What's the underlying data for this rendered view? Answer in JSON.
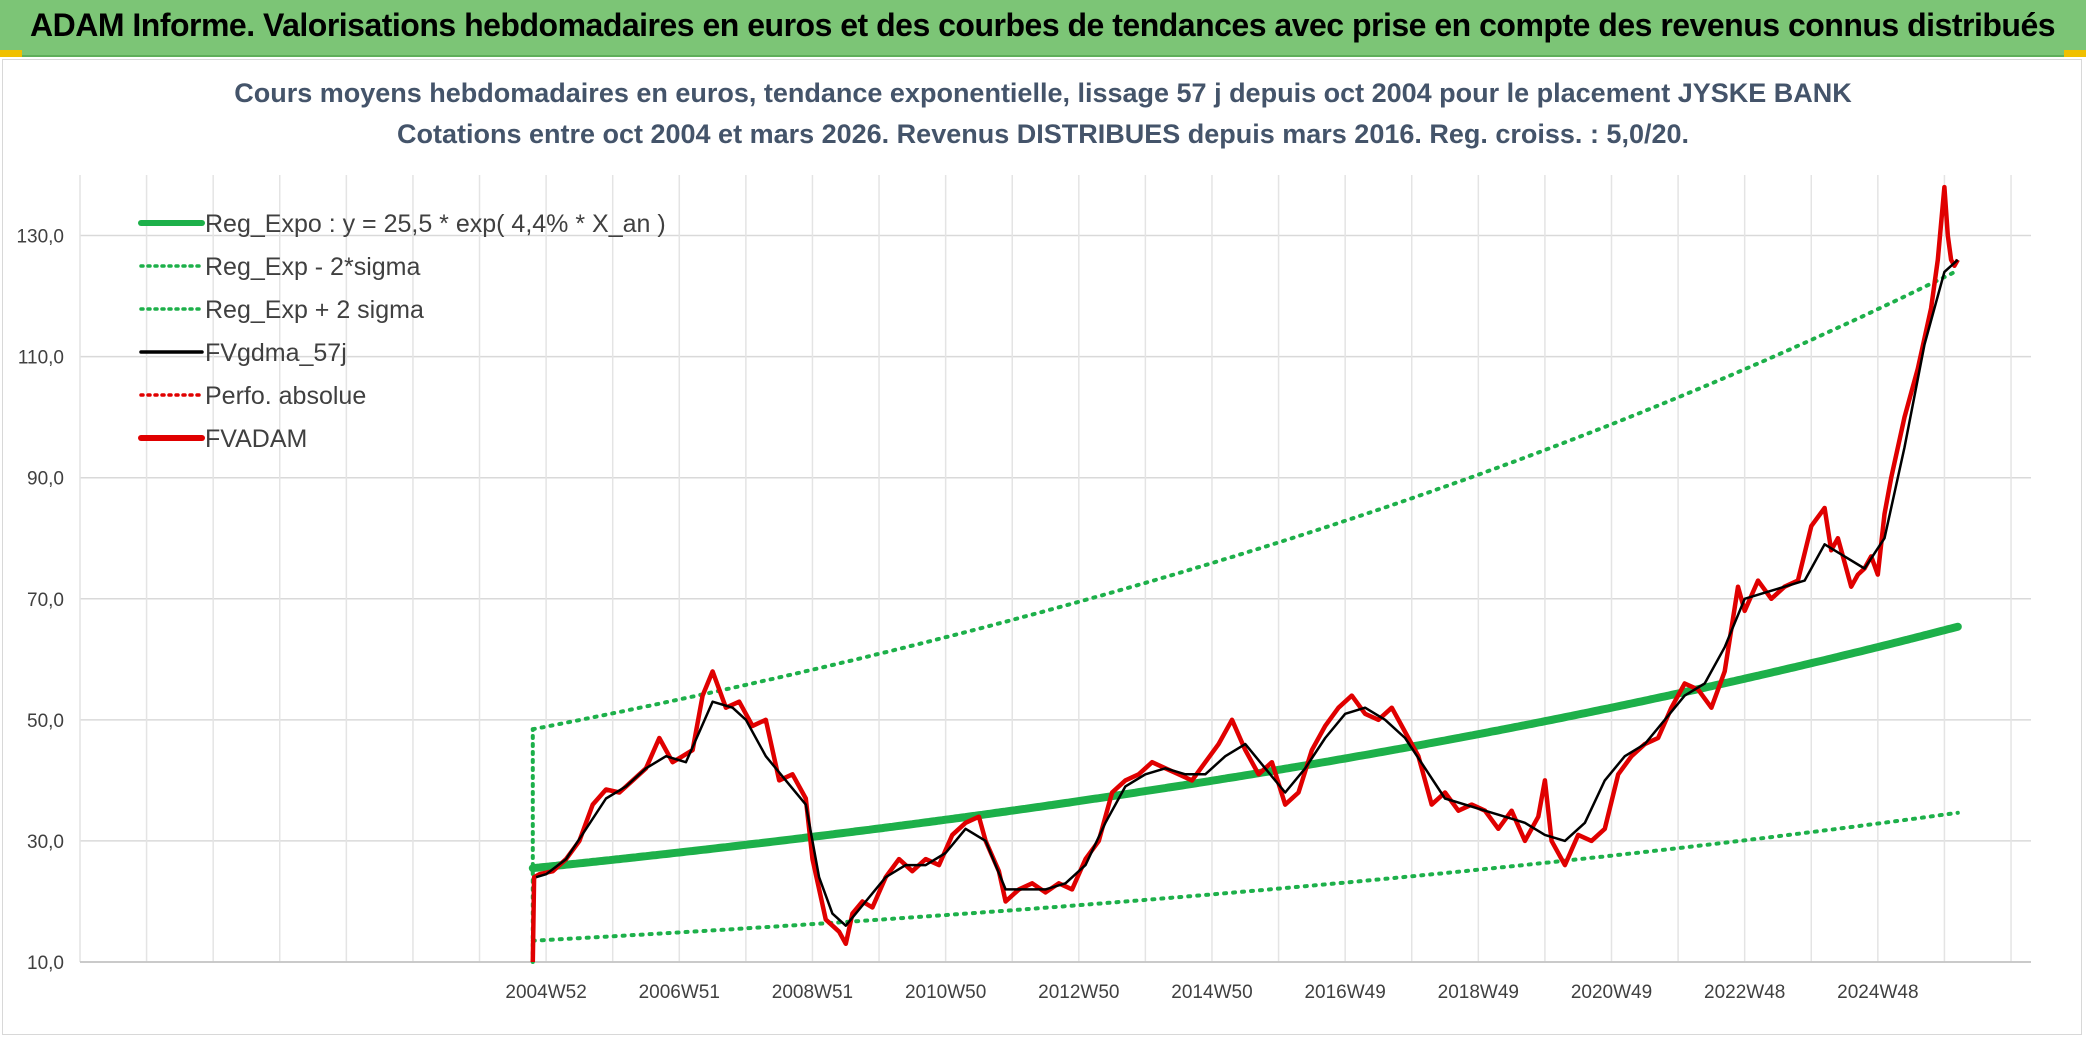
{
  "header": {
    "title": "ADAM Informe. Valorisations hebdomadaires en euros et des courbes de tendances avec prise en compte des revenus connus distribués"
  },
  "colors": {
    "banner": "#7cc576",
    "trend": "#1db04a",
    "band": "#1db04a",
    "smooth": "#000000",
    "perf": "#e00000",
    "price": "#e00000",
    "title": "#44546a"
  },
  "chart_data": {
    "type": "line",
    "title_line1": "Cours moyens hebdomadaires en euros, tendance exponentielle, lissage 57 j depuis oct 2004 pour le placement JYSKE BANK",
    "title_line2": "Cotations entre oct 2004 et mars 2026. Revenus DISTRIBUES depuis mars 2016. Reg. croiss. : 5,0/20.",
    "ylim": [
      10,
      130
    ],
    "ymax_plot": 140,
    "yticks": [
      "10,0",
      "30,0",
      "50,0",
      "70,0",
      "90,0",
      "110,0",
      "130,0"
    ],
    "ytick_values": [
      10,
      30,
      50,
      70,
      90,
      110,
      130
    ],
    "xlim": [
      1998.0,
      2027.3
    ],
    "xticks": [
      "2004W52",
      "2006W51",
      "2008W51",
      "2010W50",
      "2012W50",
      "2014W50",
      "2016W49",
      "2018W49",
      "2020W49",
      "2022W48",
      "2024W48"
    ],
    "xtick_values": [
      2005.0,
      2007.0,
      2009.0,
      2011.0,
      2013.0,
      2015.0,
      2017.0,
      2019.0,
      2021.0,
      2023.0,
      2025.0
    ],
    "grid": true,
    "legend_position": "top-left",
    "legend": [
      {
        "label": "Reg_Expo : y = 25,5 * exp( 4,4% *  X_an )",
        "style": "solid-thick",
        "color": "#1db04a"
      },
      {
        "label": "Reg_Exp - 2*sigma",
        "style": "dotted",
        "color": "#1db04a"
      },
      {
        "label": "Reg_Exp + 2 sigma",
        "style": "dotted",
        "color": "#1db04a"
      },
      {
        "label": "FVgdma_57j",
        "style": "solid",
        "color": "#000000"
      },
      {
        "label": "Perfo. absolue",
        "style": "dotted",
        "color": "#e00000"
      },
      {
        "label": "FVADAM",
        "style": "solid-thick",
        "color": "#e00000"
      }
    ],
    "trend": {
      "a": 25.5,
      "rate": 0.044,
      "start": 2004.8,
      "end": 2026.2
    },
    "band_lower_factor": 0.53,
    "band_upper_factor": 1.9,
    "series": [
      {
        "name": "FVADAM",
        "x": [
          2004.8,
          2004.82,
          2004.9,
          2005.1,
          2005.3,
          2005.5,
          2005.7,
          2005.9,
          2006.1,
          2006.3,
          2006.5,
          2006.7,
          2006.9,
          2007.05,
          2007.2,
          2007.35,
          2007.5,
          2007.7,
          2007.9,
          2008.1,
          2008.3,
          2008.5,
          2008.7,
          2008.9,
          2009.0,
          2009.2,
          2009.4,
          2009.5,
          2009.6,
          2009.75,
          2009.9,
          2010.1,
          2010.3,
          2010.5,
          2010.7,
          2010.9,
          2011.1,
          2011.3,
          2011.5,
          2011.6,
          2011.8,
          2011.9,
          2012.1,
          2012.3,
          2012.5,
          2012.7,
          2012.9,
          2013.1,
          2013.3,
          2013.5,
          2013.7,
          2013.9,
          2014.1,
          2014.3,
          2014.5,
          2014.7,
          2014.9,
          2015.1,
          2015.3,
          2015.5,
          2015.7,
          2015.9,
          2016.1,
          2016.3,
          2016.5,
          2016.7,
          2016.9,
          2017.1,
          2017.3,
          2017.5,
          2017.7,
          2017.9,
          2018.1,
          2018.3,
          2018.5,
          2018.7,
          2018.9,
          2019.1,
          2019.3,
          2019.5,
          2019.7,
          2019.9,
          2020.0,
          2020.1,
          2020.3,
          2020.5,
          2020.7,
          2020.9,
          2021.1,
          2021.3,
          2021.5,
          2021.7,
          2021.9,
          2022.1,
          2022.3,
          2022.5,
          2022.7,
          2022.9,
          2023.0,
          2023.2,
          2023.4,
          2023.6,
          2023.8,
          2024.0,
          2024.2,
          2024.3,
          2024.4,
          2024.5,
          2024.6,
          2024.7,
          2024.8,
          2024.9,
          2025.0,
          2025.1,
          2025.2,
          2025.4,
          2025.6,
          2025.8,
          2025.9,
          2026.0,
          2026.05,
          2026.1,
          2026.15,
          2026.2
        ],
        "values": [
          10,
          24,
          24.5,
          25,
          27,
          30,
          36,
          38.5,
          38,
          40,
          42,
          47,
          43,
          44,
          45,
          54,
          58,
          52,
          53,
          49,
          50,
          40,
          41,
          37,
          27,
          17,
          15,
          13,
          18,
          20,
          19,
          24,
          27,
          25,
          27,
          26,
          31,
          33,
          34,
          30,
          25,
          20,
          22,
          23,
          21.5,
          23,
          22,
          27,
          30,
          38,
          40,
          41,
          43,
          42,
          41,
          40,
          43,
          46,
          50,
          45,
          41,
          43,
          36,
          38,
          45,
          49,
          52,
          54,
          51,
          50,
          52,
          48,
          44,
          36,
          38,
          35,
          36,
          35,
          32,
          35,
          30,
          34,
          40,
          30,
          26,
          31,
          30,
          32,
          41,
          44,
          46,
          47,
          52,
          56,
          55,
          52,
          58,
          72,
          68,
          73,
          70,
          72,
          73,
          82,
          85,
          78,
          80,
          76,
          72,
          74,
          75,
          77,
          74,
          84,
          90,
          100,
          108,
          118,
          126,
          138,
          130,
          126,
          125,
          126
        ],
        "color": "#e00000"
      },
      {
        "name": "FVgdma_57j",
        "x": [
          2004.85,
          2005.0,
          2005.3,
          2005.6,
          2005.9,
          2006.2,
          2006.5,
          2006.8,
          2007.1,
          2007.3,
          2007.5,
          2007.8,
          2008.0,
          2008.3,
          2008.6,
          2008.9,
          2009.1,
          2009.3,
          2009.5,
          2009.8,
          2010.1,
          2010.4,
          2010.7,
          2011.0,
          2011.3,
          2011.6,
          2011.9,
          2012.2,
          2012.5,
          2012.8,
          2013.1,
          2013.4,
          2013.7,
          2014.0,
          2014.3,
          2014.6,
          2014.9,
          2015.2,
          2015.5,
          2015.8,
          2016.1,
          2016.4,
          2016.7,
          2017.0,
          2017.3,
          2017.6,
          2017.9,
          2018.2,
          2018.5,
          2018.8,
          2019.1,
          2019.4,
          2019.7,
          2020.0,
          2020.3,
          2020.6,
          2020.9,
          2021.2,
          2021.5,
          2021.8,
          2022.1,
          2022.4,
          2022.7,
          2023.0,
          2023.3,
          2023.6,
          2023.9,
          2024.2,
          2024.5,
          2024.8,
          2025.1,
          2025.4,
          2025.7,
          2026.0,
          2026.2
        ],
        "values": [
          24,
          24.5,
          27,
          32,
          37,
          39,
          42,
          44,
          43,
          48,
          53,
          52,
          50,
          44,
          40,
          36,
          24,
          18,
          16,
          20,
          24,
          26,
          26,
          28,
          32,
          30,
          22,
          22,
          22,
          23,
          26,
          33,
          39,
          41,
          42,
          41,
          41,
          44,
          46,
          42,
          38,
          42,
          47,
          51,
          52,
          50,
          47,
          42,
          37,
          36,
          35,
          34,
          33,
          31,
          30,
          33,
          40,
          44,
          46,
          50,
          54,
          56,
          62,
          70,
          71,
          72,
          73,
          79,
          77,
          75,
          80,
          95,
          112,
          124,
          126
        ],
        "color": "#000000"
      }
    ]
  }
}
